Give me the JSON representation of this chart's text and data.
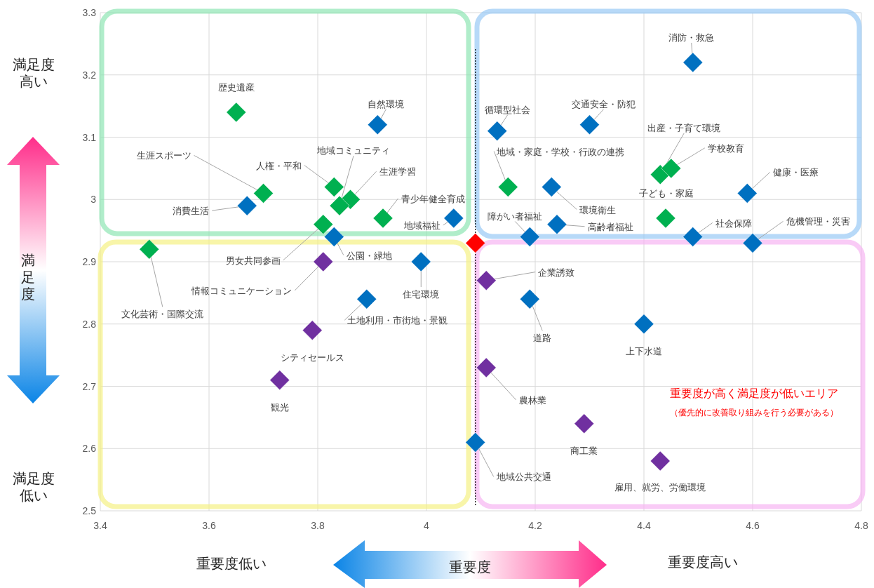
{
  "chart_data": {
    "type": "scatter",
    "xlabel": "重要度",
    "ylabel": "満足度",
    "xlim": [
      3.4,
      4.8
    ],
    "ylim": [
      2.5,
      3.3
    ],
    "xticks": [
      3.4,
      3.6,
      3.8,
      4,
      4.2,
      4.4,
      4.6,
      4.8
    ],
    "yticks": [
      2.5,
      2.6,
      2.7,
      2.8,
      2.9,
      3,
      3.1,
      3.2,
      3.3
    ],
    "grid": true,
    "marker": "diamond",
    "series": [
      {
        "color": "#0070c0",
        "x": [
          4.49,
          3.91,
          4.3,
          4.13,
          4.59,
          4.23,
          3.67,
          4.05,
          4.19,
          4.24,
          4.49,
          4.6,
          3.83,
          3.99,
          4.19,
          4.4,
          3.89,
          4.09
        ],
        "values": [
          3.22,
          3.12,
          3.12,
          3.11,
          3.01,
          3.02,
          2.99,
          2.97,
          2.94,
          2.96,
          2.94,
          2.93,
          2.94,
          2.9,
          2.84,
          2.8,
          2.84,
          2.61
        ]
      },
      {
        "color": "#00b050",
        "x": [
          3.65,
          4.43,
          4.45,
          4.15,
          3.83,
          3.86,
          3.84,
          3.7,
          3.92,
          4.44,
          3.81,
          3.49
        ],
        "values": [
          3.14,
          3.04,
          3.05,
          3.02,
          3.02,
          3.0,
          2.99,
          3.01,
          2.97,
          2.97,
          2.96,
          2.92
        ]
      },
      {
        "color": "#7030a0",
        "x": [
          3.81,
          4.11,
          3.79,
          3.73,
          4.11,
          4.29,
          4.43
        ],
        "values": [
          2.9,
          2.87,
          2.79,
          2.71,
          2.73,
          2.64,
          2.58
        ]
      },
      {
        "color": "#ff0000",
        "x": [
          4.09
        ],
        "values": [
          2.93
        ]
      }
    ],
    "ref_lines": [
      {
        "axis": "x",
        "value": 4.09,
        "color": "#000000",
        "line_style": "dotted"
      }
    ],
    "annotations": [
      {
        "text": "消防・救急",
        "x": 4.49,
        "y": 3.22
      },
      {
        "text": "歴史遺産",
        "x": 3.65,
        "y": 3.14
      },
      {
        "text": "自然環境",
        "x": 3.91,
        "y": 3.12
      },
      {
        "text": "交通安全・防犯",
        "x": 4.3,
        "y": 3.12
      },
      {
        "text": "循環型社会",
        "x": 4.13,
        "y": 3.11
      },
      {
        "text": "出産・子育て環境",
        "x": 4.43,
        "y": 3.04
      },
      {
        "text": "学校教育",
        "x": 4.45,
        "y": 3.05
      },
      {
        "text": "健康・医療",
        "x": 4.59,
        "y": 3.01
      },
      {
        "text": "地域・家庭・学校・行政の連携",
        "x": 4.15,
        "y": 3.02
      },
      {
        "text": "環境衛生",
        "x": 4.23,
        "y": 3.02
      },
      {
        "text": "人権・平和",
        "x": 3.83,
        "y": 3.02
      },
      {
        "text": "地域コミュニティ",
        "x": 3.84,
        "y": 2.99
      },
      {
        "text": "生涯学習",
        "x": 3.86,
        "y": 3.0
      },
      {
        "text": "生涯スポーツ",
        "x": 3.7,
        "y": 3.01
      },
      {
        "text": "消費生活",
        "x": 3.67,
        "y": 2.99
      },
      {
        "text": "青少年健全育成",
        "x": 3.92,
        "y": 2.97
      },
      {
        "text": "地域福祉",
        "x": 4.05,
        "y": 2.97
      },
      {
        "text": "子ども・家庭",
        "x": 4.44,
        "y": 2.97
      },
      {
        "text": "障がい者福祉",
        "x": 4.19,
        "y": 2.94
      },
      {
        "text": "高齢者福祉",
        "x": 4.24,
        "y": 2.96
      },
      {
        "text": "社会保障",
        "x": 4.49,
        "y": 2.94
      },
      {
        "text": "危機管理・災害",
        "x": 4.6,
        "y": 2.93
      },
      {
        "text": "男女共同参画",
        "x": 3.81,
        "y": 2.96
      },
      {
        "text": "公園・緑地",
        "x": 3.83,
        "y": 2.94
      },
      {
        "text": "文化芸術・国際交流",
        "x": 3.49,
        "y": 2.92
      },
      {
        "text": "情報コミュニケーション",
        "x": 3.81,
        "y": 2.9
      },
      {
        "text": "住宅環境",
        "x": 3.99,
        "y": 2.9
      },
      {
        "text": "企業誘致",
        "x": 4.11,
        "y": 2.87
      },
      {
        "text": "道路",
        "x": 4.19,
        "y": 2.84
      },
      {
        "text": "上下水道",
        "x": 4.4,
        "y": 2.8
      },
      {
        "text": "土地利用・市街地・景観",
        "x": 3.89,
        "y": 2.84
      },
      {
        "text": "シティセールス",
        "x": 3.79,
        "y": 2.79
      },
      {
        "text": "観光",
        "x": 3.73,
        "y": 2.71
      },
      {
        "text": "農林業",
        "x": 4.11,
        "y": 2.73
      },
      {
        "text": "商工業",
        "x": 4.29,
        "y": 2.64
      },
      {
        "text": "地域公共交通",
        "x": 4.09,
        "y": 2.61
      },
      {
        "text": "雇用、就労、労働環境",
        "x": 4.43,
        "y": 2.58
      },
      "満足度高い",
      "満足度低い",
      "重要度低い",
      "重要度高い",
      "重要度が高く満足度が低いエリア",
      "（優先的に改善取り組みを行う必要がある）"
    ]
  }
}
